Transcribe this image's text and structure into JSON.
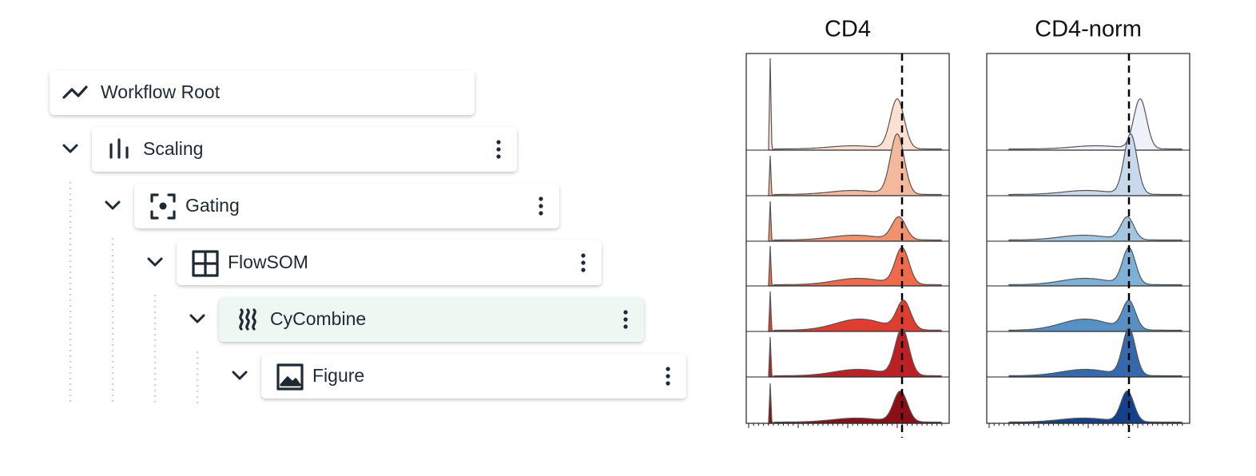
{
  "nodes": [
    {
      "label": "Workflow Root"
    },
    {
      "label": "Scaling"
    },
    {
      "label": "Gating"
    },
    {
      "label": "FlowSOM"
    },
    {
      "label": "CyCombine"
    },
    {
      "label": "Figure"
    }
  ],
  "panels": [
    {
      "title": "CD4"
    },
    {
      "title": "CD4-norm"
    }
  ]
}
